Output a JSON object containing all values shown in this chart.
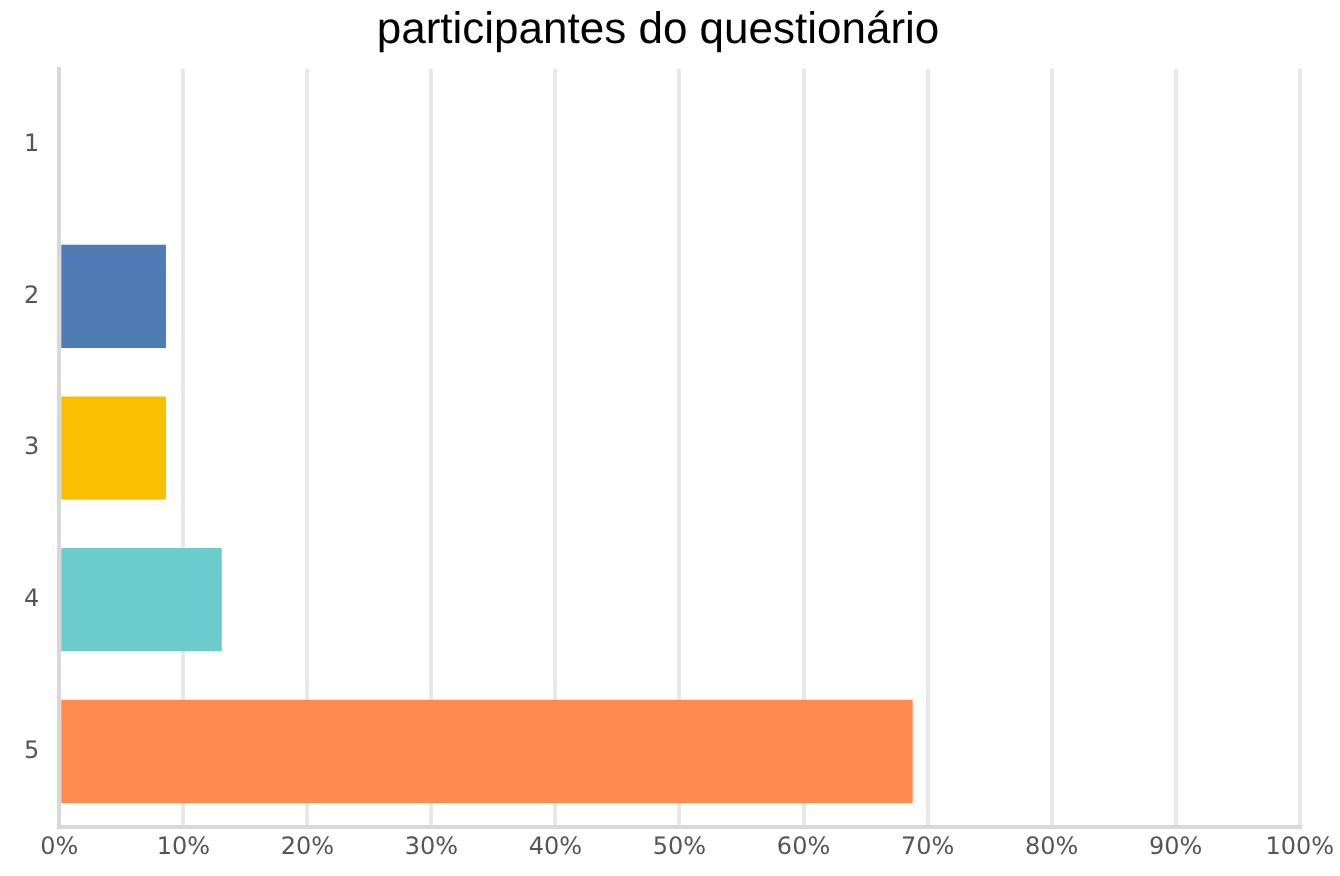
{
  "chart_data": {
    "type": "bar",
    "orientation": "horizontal",
    "title": "participantes do questionário",
    "categories": [
      "1",
      "2",
      "3",
      "4",
      "5"
    ],
    "values": [
      0,
      8.6,
      8.6,
      13.1,
      68.8
    ],
    "colors": [
      "#4f7bb5",
      "#4f7bb5",
      "#f9bf00",
      "#6ccbcc",
      "#ff8a4e"
    ],
    "xlim": [
      0,
      100
    ],
    "xticks": [
      {
        "value": 0,
        "label": "0%"
      },
      {
        "value": 10,
        "label": "10%"
      },
      {
        "value": 20,
        "label": "20%"
      },
      {
        "value": 30,
        "label": "30%"
      },
      {
        "value": 40,
        "label": "40%"
      },
      {
        "value": 50,
        "label": "50%"
      },
      {
        "value": 60,
        "label": "60%"
      },
      {
        "value": 70,
        "label": "70%"
      },
      {
        "value": 80,
        "label": "80%"
      },
      {
        "value": 90,
        "label": "90%"
      },
      {
        "value": 100,
        "label": "100%"
      }
    ],
    "grid": "x"
  }
}
